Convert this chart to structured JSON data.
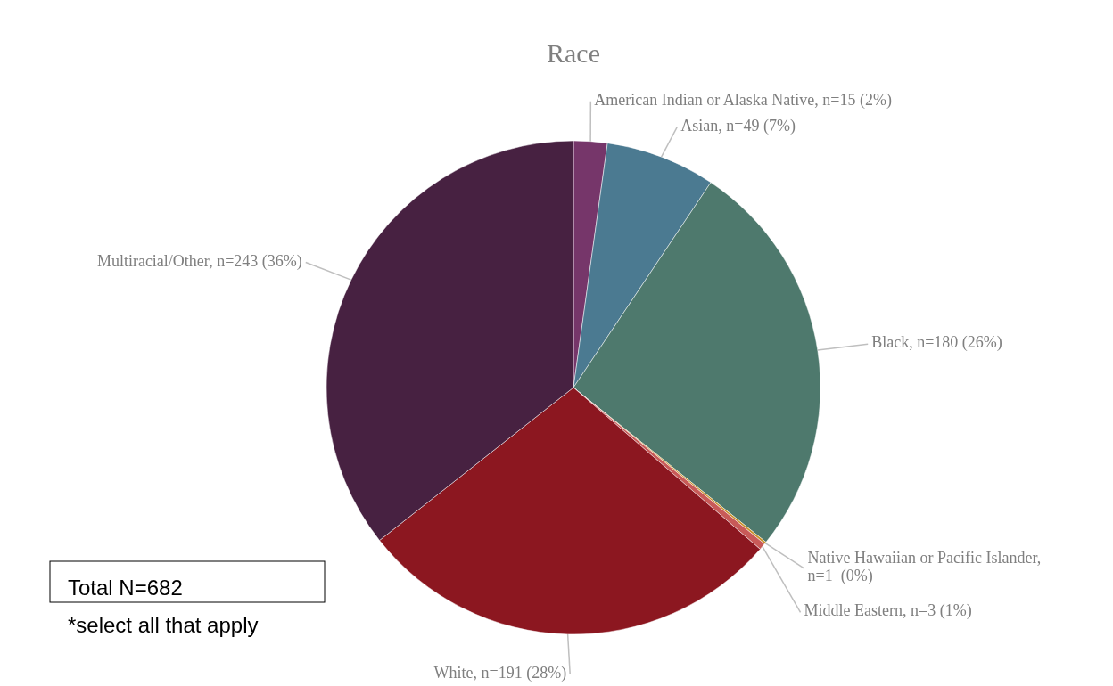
{
  "chart_data": {
    "type": "pie",
    "title": "Race",
    "categories": [
      "American Indian or Alaska Native",
      "Asian",
      "Black",
      "Native Hawaiian or Pacific Islander",
      "Middle Eastern",
      "White",
      "Multiracial/Other"
    ],
    "values": [
      15,
      49,
      180,
      1,
      3,
      191,
      243
    ],
    "colors": [
      "#76366a",
      "#4b7a91",
      "#4e796d",
      "#c8922a",
      "#c85a58",
      "#8c1720",
      "#472141"
    ],
    "value_labels": [
      ", n=15 (2%)",
      ", n=49 (7%)",
      ", n=180 (26%)",
      ", n=1  (0%)",
      ", n=3 (1%)",
      ", n=191 (28%)",
      ", n=243 (36%)"
    ],
    "annotations": [
      "Total N=682",
      "*select all that apply"
    ]
  }
}
